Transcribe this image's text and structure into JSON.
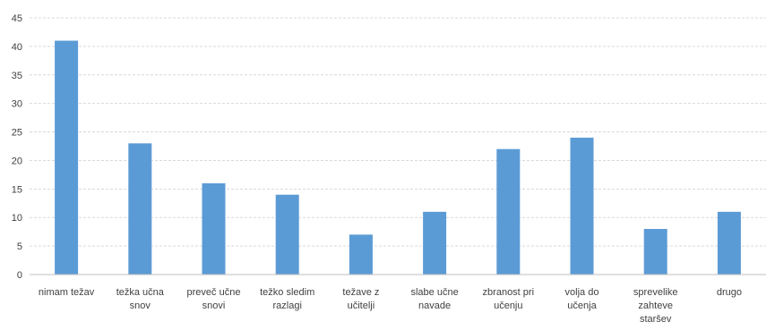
{
  "chart_data": {
    "type": "bar",
    "categories": [
      [
        "nimam težav"
      ],
      [
        "težka učna",
        "snov"
      ],
      [
        "preveč učne",
        "snovi"
      ],
      [
        "težko sledim",
        "razlagi"
      ],
      [
        "težave z",
        "učitelji"
      ],
      [
        "slabe učne",
        "navade"
      ],
      [
        "zbranost pri",
        "učenju"
      ],
      [
        "volja do",
        "učenja"
      ],
      [
        "sprevelike",
        "zahteve",
        "staršev"
      ],
      [
        "drugo"
      ]
    ],
    "values": [
      41,
      23,
      16,
      14,
      7,
      11,
      22,
      24,
      8,
      11
    ],
    "ylim": [
      0,
      45
    ],
    "yticks": [
      0,
      5,
      10,
      15,
      20,
      25,
      30,
      35,
      40,
      45
    ],
    "grid": true,
    "bar_color": "#5b9bd5",
    "title": "",
    "xlabel": "",
    "ylabel": ""
  }
}
